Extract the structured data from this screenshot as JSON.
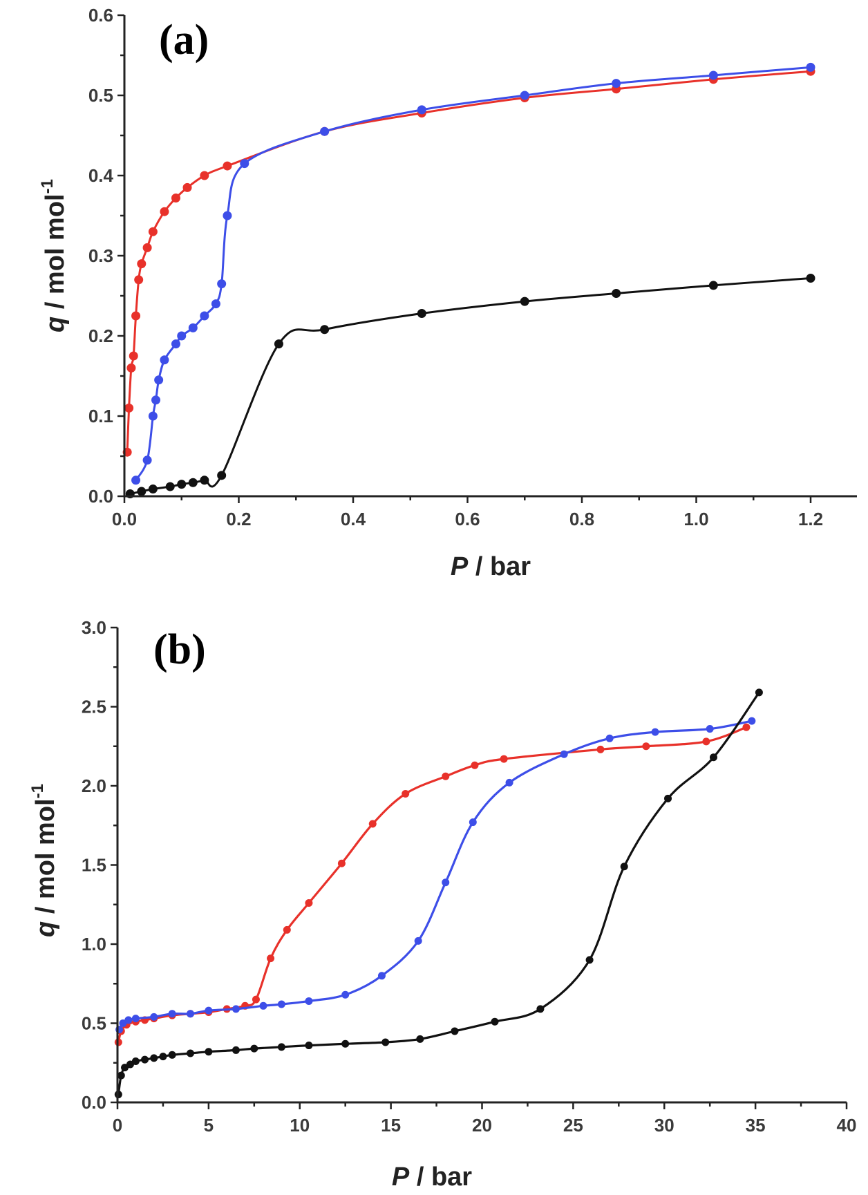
{
  "chart_data": [
    {
      "type": "line",
      "panel_label": "(a)",
      "xlabel_var": "P",
      "xlabel_unit": " / bar",
      "ylabel_var": "q",
      "ylabel_unit": " / mol mol",
      "ylabel_sup": "-1",
      "xlim": [
        0,
        1.25
      ],
      "ylim": [
        0,
        0.6
      ],
      "xticks": [
        "0.0",
        "0.2",
        "0.4",
        "0.6",
        "0.8",
        "1.0",
        "1.2"
      ],
      "yticks": [
        "0.0",
        "0.1",
        "0.2",
        "0.3",
        "0.4",
        "0.5",
        "0.6"
      ],
      "legend": "none",
      "grid": false,
      "series": [
        {
          "color": "#e8312a",
          "x": [
            0.005,
            0.008,
            0.012,
            0.016,
            0.02,
            0.025,
            0.03,
            0.04,
            0.05,
            0.07,
            0.09,
            0.11,
            0.14,
            0.18,
            0.35,
            0.52,
            0.7,
            0.86,
            1.03,
            1.2
          ],
          "y": [
            0.055,
            0.11,
            0.16,
            0.175,
            0.225,
            0.27,
            0.29,
            0.31,
            0.33,
            0.355,
            0.372,
            0.385,
            0.4,
            0.412,
            0.455,
            0.478,
            0.497,
            0.508,
            0.52,
            0.53
          ]
        },
        {
          "color": "#3d4ee8",
          "x": [
            0.02,
            0.04,
            0.05,
            0.055,
            0.06,
            0.07,
            0.09,
            0.1,
            0.12,
            0.14,
            0.16,
            0.17,
            0.18,
            0.21,
            0.35,
            0.52,
            0.7,
            0.86,
            1.03,
            1.2
          ],
          "y": [
            0.02,
            0.045,
            0.1,
            0.12,
            0.145,
            0.17,
            0.19,
            0.2,
            0.21,
            0.225,
            0.24,
            0.265,
            0.35,
            0.415,
            0.455,
            0.482,
            0.5,
            0.515,
            0.525,
            0.535
          ]
        },
        {
          "color": "#111111",
          "x": [
            0.01,
            0.03,
            0.05,
            0.08,
            0.1,
            0.12,
            0.14,
            0.17,
            0.27,
            0.35,
            0.52,
            0.7,
            0.86,
            1.03,
            1.2
          ],
          "y": [
            0.003,
            0.006,
            0.009,
            0.012,
            0.015,
            0.017,
            0.02,
            0.026,
            0.19,
            0.208,
            0.228,
            0.243,
            0.253,
            0.263,
            0.272
          ]
        }
      ]
    },
    {
      "type": "line",
      "panel_label": "(b)",
      "xlabel_var": "P",
      "xlabel_unit": " / bar",
      "ylabel_var": "q",
      "ylabel_unit": " / mol mol",
      "ylabel_sup": "-1",
      "xlim": [
        0,
        40
      ],
      "ylim": [
        0,
        3.0
      ],
      "xticks": [
        "0",
        "5",
        "10",
        "15",
        "20",
        "25",
        "30",
        "35",
        "40"
      ],
      "yticks": [
        "0.0",
        "0.5",
        "1.0",
        "1.5",
        "2.0",
        "2.5",
        "3.0"
      ],
      "legend": "none",
      "grid": false,
      "series": [
        {
          "color": "#e8312a",
          "x": [
            0.05,
            0.2,
            0.5,
            1,
            1.5,
            2,
            3,
            4,
            5,
            6,
            7,
            7.6,
            8.4,
            9.3,
            10.5,
            12.3,
            14,
            15.8,
            18,
            19.6,
            21.2,
            26.5,
            29,
            32.3,
            34.5
          ],
          "y": [
            0.38,
            0.45,
            0.49,
            0.51,
            0.52,
            0.53,
            0.55,
            0.56,
            0.57,
            0.59,
            0.61,
            0.65,
            0.91,
            1.09,
            1.26,
            1.51,
            1.76,
            1.95,
            2.06,
            2.13,
            2.17,
            2.23,
            2.25,
            2.28,
            2.37
          ]
        },
        {
          "color": "#3d4ee8",
          "x": [
            0.1,
            0.3,
            0.6,
            1,
            2,
            3,
            4,
            5,
            6.5,
            8,
            9,
            10.5,
            12.5,
            14.5,
            16.5,
            18,
            19.5,
            21.5,
            24.5,
            27,
            29.5,
            32.5,
            34.8
          ],
          "y": [
            0.46,
            0.5,
            0.52,
            0.53,
            0.54,
            0.56,
            0.56,
            0.58,
            0.59,
            0.61,
            0.62,
            0.64,
            0.68,
            0.8,
            1.02,
            1.39,
            1.77,
            2.02,
            2.2,
            2.3,
            2.34,
            2.36,
            2.41
          ]
        },
        {
          "color": "#111111",
          "x": [
            0.05,
            0.2,
            0.4,
            0.7,
            1,
            1.5,
            2,
            2.5,
            3,
            4,
            5,
            6.5,
            7.5,
            9,
            10.5,
            12.5,
            14.7,
            16.6,
            18.5,
            20.7,
            23.2,
            25.9,
            27.8,
            30.2,
            32.7,
            35.2
          ],
          "y": [
            0.05,
            0.17,
            0.22,
            0.24,
            0.26,
            0.27,
            0.28,
            0.29,
            0.3,
            0.31,
            0.32,
            0.33,
            0.34,
            0.35,
            0.36,
            0.37,
            0.38,
            0.4,
            0.45,
            0.51,
            0.59,
            0.9,
            1.49,
            1.92,
            2.18,
            2.59
          ]
        }
      ]
    }
  ]
}
